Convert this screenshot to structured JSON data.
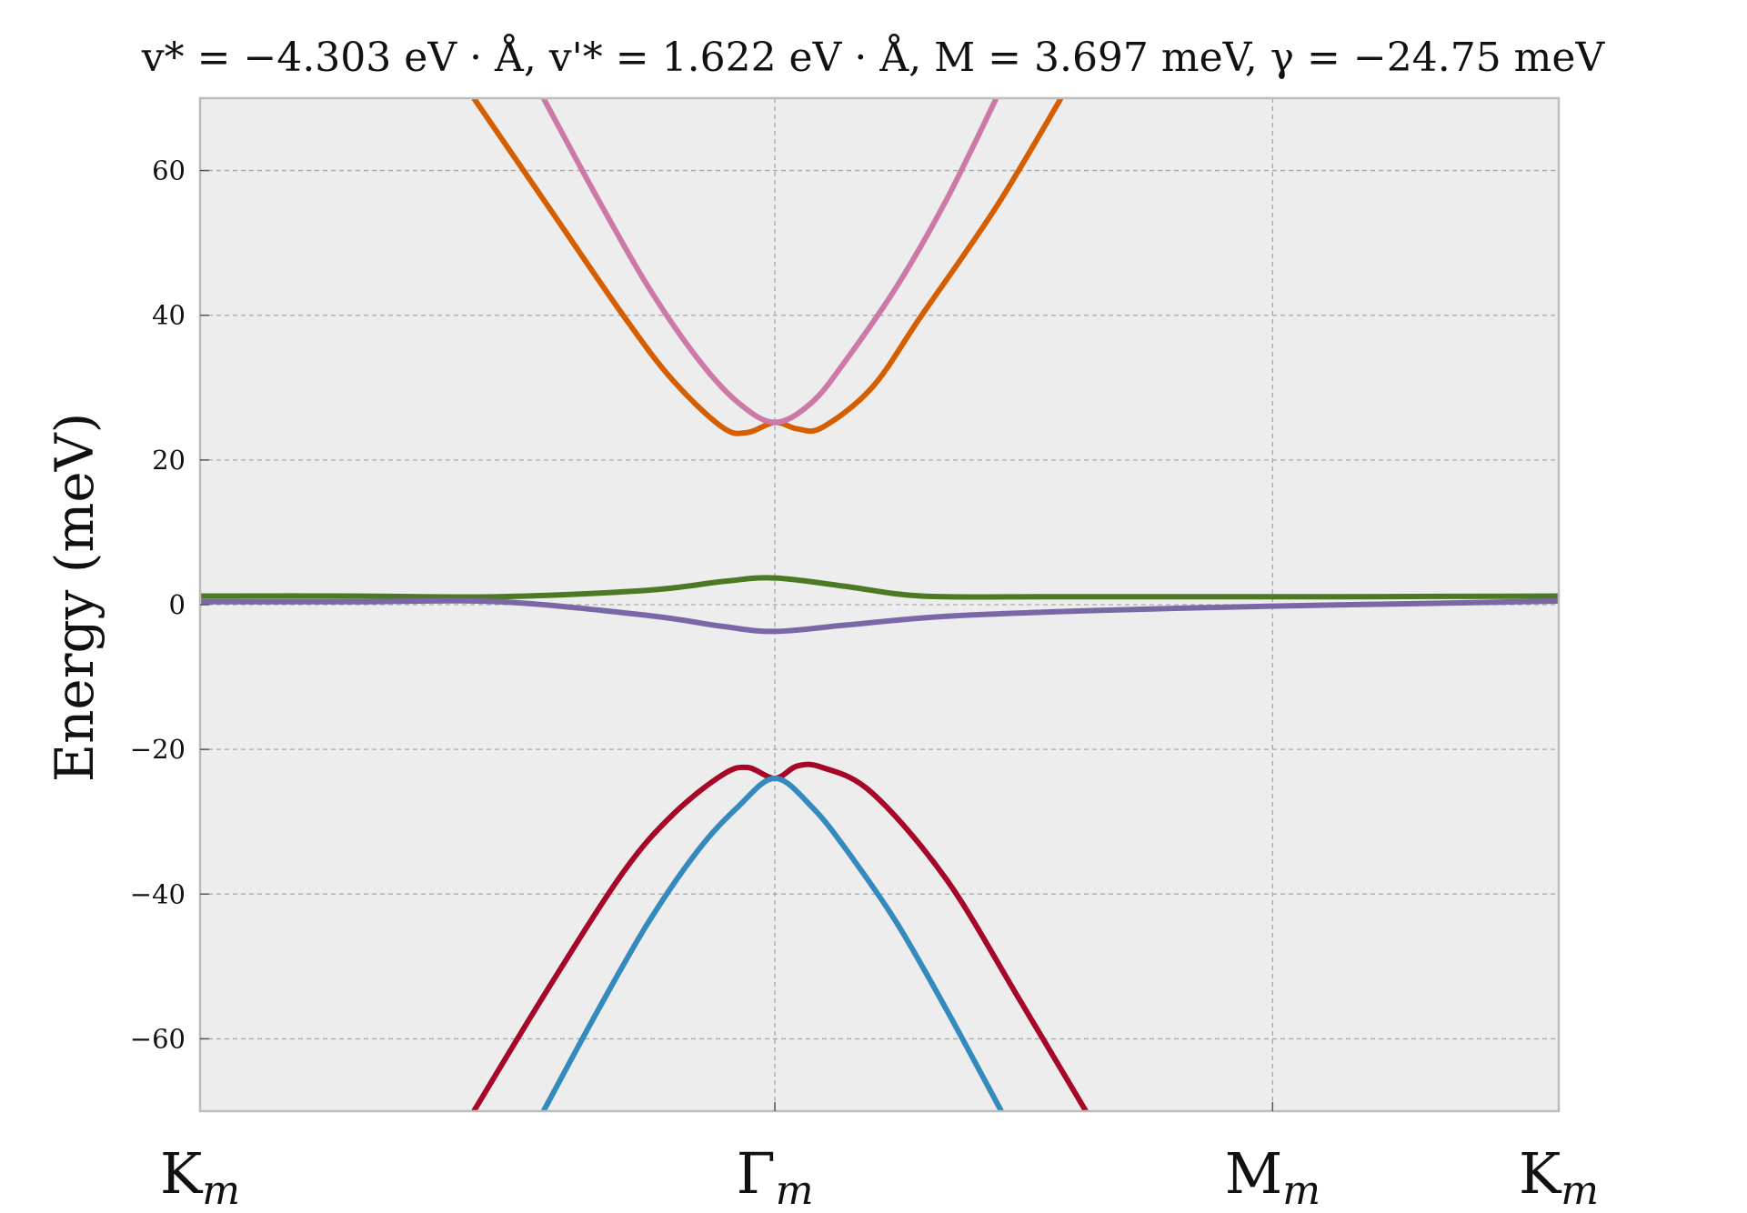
{
  "chart_data": {
    "type": "line",
    "title": "v* = −4.303 eV · Å, v'* = 1.622 eV · Å, M = 3.697 meV, γ = −24.75 meV",
    "xlabel": "",
    "ylabel": "Energy (meV)",
    "ylim": [
      -70,
      70
    ],
    "xlim": [
      0,
      2.73
    ],
    "yticks": [
      -60,
      -40,
      -20,
      0,
      20,
      40,
      60
    ],
    "ytick_labels": [
      "−60",
      "−40",
      "−20",
      "0",
      "20",
      "40",
      "60"
    ],
    "xticks": [
      {
        "pos": 0,
        "main": "K",
        "sub": "m"
      },
      {
        "pos": 1.155,
        "main": "Γ",
        "sub": "m"
      },
      {
        "pos": 2.155,
        "main": "M",
        "sub": "m"
      },
      {
        "pos": 2.73,
        "main": "K",
        "sub": "m"
      }
    ],
    "grid": true,
    "background": "#ededed",
    "series": [
      {
        "color": "#d55e00",
        "x": [
          0.55,
          0.7,
          0.85,
          0.95,
          1.05,
          1.1,
          1.155,
          1.2,
          1.25,
          1.35,
          1.45,
          1.6,
          1.73
        ],
        "y": [
          70,
          55,
          40,
          31,
          24.5,
          23.8,
          25.2,
          24.3,
          24.5,
          30,
          40,
          55,
          70
        ]
      },
      {
        "color": "#cc79a7",
        "x": [
          0.69,
          0.8,
          0.9,
          1.0,
          1.08,
          1.155,
          1.23,
          1.3,
          1.4,
          1.5,
          1.6
        ],
        "y": [
          70,
          56,
          44,
          34,
          28,
          25.2,
          28,
          34,
          44,
          56,
          70
        ]
      },
      {
        "color": "#4c7a24",
        "x": [
          0,
          0.3,
          0.6,
          0.9,
          1.05,
          1.155,
          1.3,
          1.45,
          1.7,
          2.0,
          2.3,
          2.73
        ],
        "y": [
          1.2,
          1.2,
          1.1,
          2.0,
          3.2,
          3.7,
          2.5,
          1.2,
          1.1,
          1.1,
          1.1,
          1.2
        ]
      },
      {
        "color": "#7a68a6",
        "x": [
          0,
          0.3,
          0.6,
          0.9,
          1.05,
          1.155,
          1.3,
          1.5,
          1.8,
          2.155,
          2.4,
          2.73
        ],
        "y": [
          0.4,
          0.4,
          0.4,
          -1.5,
          -3.0,
          -3.7,
          -2.8,
          -1.6,
          -0.8,
          -0.2,
          0.1,
          0.5
        ]
      },
      {
        "color": "#a60628",
        "x": [
          0.55,
          0.7,
          0.85,
          0.95,
          1.05,
          1.1,
          1.155,
          1.2,
          1.25,
          1.35,
          1.5,
          1.65,
          1.78
        ],
        "y": [
          -70,
          -53,
          -37,
          -29,
          -23.5,
          -22.5,
          -24,
          -22.3,
          -22.5,
          -26,
          -38,
          -55,
          -70
        ]
      },
      {
        "color": "#348abd",
        "x": [
          0.69,
          0.8,
          0.9,
          1.0,
          1.08,
          1.155,
          1.23,
          1.3,
          1.4,
          1.5,
          1.61
        ],
        "y": [
          -70,
          -56,
          -44,
          -34,
          -28,
          -24,
          -28,
          -34,
          -44,
          -56,
          -70
        ]
      }
    ]
  }
}
